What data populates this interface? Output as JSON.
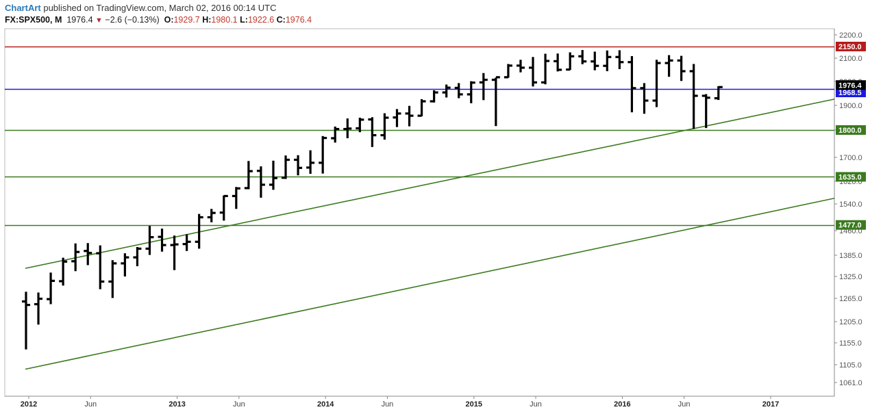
{
  "header": {
    "brand": "ChartArt",
    "published_text": " published on TradingView.com, March 02, 2016 00:14 UTC"
  },
  "quote": {
    "symbol": "FX:SPX500, M",
    "last": "1976.4",
    "change": "−2.6 (−0.13%)",
    "open_label": "O:",
    "open": "1929.7",
    "high_label": "H:",
    "high": "1980.1",
    "low_label": "L:",
    "low": "1922.6",
    "close_label": "C:",
    "close": "1976.4"
  },
  "colors": {
    "bar": "#000000",
    "red_line": "#b71c1c",
    "blue_line": "#1a1adf",
    "green_line": "#3b7a1e",
    "price_tag": "#000000",
    "blue_tag": "#1a1adf",
    "red_tag": "#b71c1c",
    "green_tag": "#3b7a1e"
  },
  "chart_data": {
    "type": "ohlc",
    "interval": "monthly",
    "y_axis_ticks": [
      1061.0,
      1105.0,
      1155.0,
      1205.0,
      1265.0,
      1325.0,
      1385.0,
      1460.0,
      1540.0,
      1620.0,
      1700.0,
      1800.0,
      1900.0,
      2000.0,
      2100.0,
      2200.0
    ],
    "x_axis_ticks": [
      {
        "label": "2012",
        "month": 0,
        "year": true
      },
      {
        "label": "Jun",
        "month": 5,
        "year": false
      },
      {
        "label": "2013",
        "month": 12,
        "year": true
      },
      {
        "label": "Jun",
        "month": 17,
        "year": false
      },
      {
        "label": "2014",
        "month": 24,
        "year": true
      },
      {
        "label": "Jun",
        "month": 29,
        "year": false
      },
      {
        "label": "2015",
        "month": 36,
        "year": true
      },
      {
        "label": "Jun",
        "month": 41,
        "year": false
      },
      {
        "label": "2016",
        "month": 48,
        "year": true
      },
      {
        "label": "Jun",
        "month": 53,
        "year": false
      },
      {
        "label": "2017",
        "month": 60,
        "year": true
      }
    ],
    "horizontal_levels": [
      {
        "value": 2150.0,
        "label": "2150.0",
        "color": "red"
      },
      {
        "value": 1968.5,
        "label": "1968.5",
        "color": "blue"
      },
      {
        "value": 1800.0,
        "label": "1800.0",
        "color": "green"
      },
      {
        "value": 1635.0,
        "label": "1635.0",
        "color": "green"
      },
      {
        "value": 1477.0,
        "label": "1477.0",
        "color": "green"
      }
    ],
    "last_price_label": "1976.4",
    "trendlines": [
      {
        "from": {
          "month": -0.5,
          "value": 1348
        },
        "to": {
          "month": 63.5,
          "value": 1926
        }
      },
      {
        "from": {
          "month": -0.5,
          "value": 1094
        },
        "to": {
          "month": 63.5,
          "value": 1560
        }
      }
    ],
    "bars": [
      {
        "month": -0.5,
        "open": 1257,
        "high": 1283,
        "low": 1140,
        "close": 1248
      },
      {
        "month": 0.5,
        "open": 1250,
        "high": 1281,
        "low": 1198,
        "close": 1264
      },
      {
        "month": 1.5,
        "open": 1263,
        "high": 1336,
        "low": 1250,
        "close": 1313
      },
      {
        "month": 2.5,
        "open": 1312,
        "high": 1378,
        "low": 1300,
        "close": 1367
      },
      {
        "month": 3.5,
        "open": 1368,
        "high": 1421,
        "low": 1340,
        "close": 1395
      },
      {
        "month": 4.5,
        "open": 1398,
        "high": 1422,
        "low": 1357,
        "close": 1392
      },
      {
        "month": 5.5,
        "open": 1391,
        "high": 1415,
        "low": 1290,
        "close": 1311
      },
      {
        "month": 6.5,
        "open": 1311,
        "high": 1371,
        "low": 1266,
        "close": 1362
      },
      {
        "month": 7.5,
        "open": 1362,
        "high": 1391,
        "low": 1325,
        "close": 1379
      },
      {
        "month": 8.5,
        "open": 1379,
        "high": 1410,
        "low": 1354,
        "close": 1405
      },
      {
        "month": 9.5,
        "open": 1405,
        "high": 1474,
        "low": 1386,
        "close": 1440
      },
      {
        "month": 10.5,
        "open": 1441,
        "high": 1466,
        "low": 1396,
        "close": 1416
      },
      {
        "month": 11.5,
        "open": 1416,
        "high": 1445,
        "low": 1343,
        "close": 1418
      },
      {
        "month": 12.5,
        "open": 1419,
        "high": 1449,
        "low": 1398,
        "close": 1426
      },
      {
        "month": 13.5,
        "open": 1426,
        "high": 1510,
        "low": 1405,
        "close": 1500
      },
      {
        "month": 14.5,
        "open": 1500,
        "high": 1525,
        "low": 1485,
        "close": 1513
      },
      {
        "month": 15.5,
        "open": 1514,
        "high": 1570,
        "low": 1490,
        "close": 1568
      },
      {
        "month": 16.5,
        "open": 1568,
        "high": 1600,
        "low": 1525,
        "close": 1595
      },
      {
        "month": 17.5,
        "open": 1596,
        "high": 1688,
        "low": 1592,
        "close": 1654
      },
      {
        "month": 18.5,
        "open": 1655,
        "high": 1670,
        "low": 1562,
        "close": 1608
      },
      {
        "month": 19.5,
        "open": 1608,
        "high": 1689,
        "low": 1590,
        "close": 1631
      },
      {
        "month": 20.5,
        "open": 1632,
        "high": 1707,
        "low": 1628,
        "close": 1692
      },
      {
        "month": 21.5,
        "open": 1692,
        "high": 1708,
        "low": 1640,
        "close": 1665
      },
      {
        "month": 22.5,
        "open": 1666,
        "high": 1726,
        "low": 1645,
        "close": 1682
      },
      {
        "month": 23.5,
        "open": 1682,
        "high": 1778,
        "low": 1646,
        "close": 1771
      },
      {
        "month": 24.5,
        "open": 1770,
        "high": 1814,
        "low": 1754,
        "close": 1804
      },
      {
        "month": 25.5,
        "open": 1804,
        "high": 1847,
        "low": 1770,
        "close": 1806
      },
      {
        "month": 26.5,
        "open": 1807,
        "high": 1850,
        "low": 1792,
        "close": 1842
      },
      {
        "month": 27.5,
        "open": 1843,
        "high": 1852,
        "low": 1738,
        "close": 1781
      },
      {
        "month": 28.5,
        "open": 1781,
        "high": 1868,
        "low": 1765,
        "close": 1850
      },
      {
        "month": 29.5,
        "open": 1851,
        "high": 1885,
        "low": 1812,
        "close": 1867
      },
      {
        "month": 30.5,
        "open": 1867,
        "high": 1898,
        "low": 1815,
        "close": 1858
      },
      {
        "month": 31.5,
        "open": 1858,
        "high": 1926,
        "low": 1856,
        "close": 1917
      },
      {
        "month": 32.5,
        "open": 1917,
        "high": 1963,
        "low": 1912,
        "close": 1954
      },
      {
        "month": 33.5,
        "open": 1954,
        "high": 1987,
        "low": 1933,
        "close": 1974
      },
      {
        "month": 34.5,
        "open": 1973,
        "high": 1993,
        "low": 1930,
        "close": 1946
      },
      {
        "month": 35.5,
        "open": 1946,
        "high": 2001,
        "low": 1909,
        "close": 1995
      },
      {
        "month": 36.5,
        "open": 1996,
        "high": 2036,
        "low": 1922,
        "close": 2007
      },
      {
        "month": 37.5,
        "open": 2007,
        "high": 2016,
        "low": 1816,
        "close": 2018
      },
      {
        "month": 38.5,
        "open": 2018,
        "high": 2075,
        "low": 2016,
        "close": 2068
      },
      {
        "month": 39.5,
        "open": 2068,
        "high": 2093,
        "low": 2039,
        "close": 2059
      },
      {
        "month": 40.5,
        "open": 2059,
        "high": 2105,
        "low": 1979,
        "close": 1996
      },
      {
        "month": 41.5,
        "open": 1996,
        "high": 2119,
        "low": 1988,
        "close": 2088
      },
      {
        "month": 42.5,
        "open": 2087,
        "high": 2120,
        "low": 2043,
        "close": 2050
      },
      {
        "month": 43.5,
        "open": 2051,
        "high": 2125,
        "low": 2049,
        "close": 2108
      },
      {
        "month": 44.5,
        "open": 2108,
        "high": 2135,
        "low": 2074,
        "close": 2086
      },
      {
        "month": 45.5,
        "open": 2086,
        "high": 2128,
        "low": 2048,
        "close": 2067
      },
      {
        "month": 46.5,
        "open": 2067,
        "high": 2133,
        "low": 2044,
        "close": 2105
      },
      {
        "month": 47.5,
        "open": 2105,
        "high": 2134,
        "low": 2053,
        "close": 2083
      },
      {
        "month": 48.5,
        "open": 2083,
        "high": 2109,
        "low": 1872,
        "close": 1972
      },
      {
        "month": 49.5,
        "open": 1972,
        "high": 1993,
        "low": 1866,
        "close": 1920
      },
      {
        "month": 50.5,
        "open": 1920,
        "high": 2093,
        "low": 1893,
        "close": 2079
      },
      {
        "month": 51.5,
        "open": 2079,
        "high": 2113,
        "low": 2020,
        "close": 2090
      },
      {
        "month": 52.5,
        "open": 2090,
        "high": 2110,
        "low": 2002,
        "close": 2044
      },
      {
        "month": 53.5,
        "open": 2044,
        "high": 2075,
        "low": 1804,
        "close": 1940
      },
      {
        "month": 54.5,
        "open": 1940,
        "high": 1947,
        "low": 1808,
        "close": 1932
      },
      {
        "month": 55.5,
        "open": 1929.7,
        "high": 1980.1,
        "low": 1922.6,
        "close": 1976.4
      }
    ]
  }
}
